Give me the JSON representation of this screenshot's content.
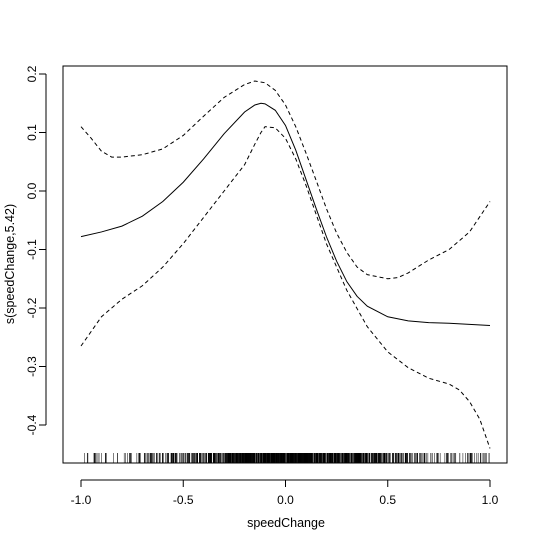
{
  "chart_data": {
    "type": "line",
    "title": "",
    "xlabel": "speedChange",
    "ylabel": "s(speedChange,5.42)",
    "xlim": [
      -1.05,
      1.05
    ],
    "ylim": [
      -0.465,
      0.21
    ],
    "x_ticks": [
      -1.0,
      -0.5,
      0.0,
      0.5,
      1.0
    ],
    "x_tick_labels": [
      "-1.0",
      "-0.5",
      "0.0",
      "0.5",
      "1.0"
    ],
    "y_ticks": [
      0.2,
      0.1,
      0.0,
      -0.1,
      -0.2,
      -0.3,
      -0.4
    ],
    "y_tick_labels": [
      "0.2",
      "0.1",
      "0.0",
      "-0.1",
      "-0.2",
      "-0.3",
      "-0.4"
    ],
    "grid": false,
    "legend": "none",
    "series": [
      {
        "style": "solid",
        "x": [
          -1.0,
          -0.9,
          -0.8,
          -0.7,
          -0.6,
          -0.5,
          -0.4,
          -0.3,
          -0.2,
          -0.15,
          -0.12,
          -0.1,
          -0.05,
          0.0,
          0.05,
          0.1,
          0.15,
          0.2,
          0.25,
          0.3,
          0.35,
          0.4,
          0.5,
          0.6,
          0.7,
          0.8,
          0.9,
          1.0
        ],
        "y": [
          -0.078,
          -0.07,
          -0.06,
          -0.043,
          -0.018,
          0.015,
          0.055,
          0.098,
          0.135,
          0.147,
          0.15,
          0.149,
          0.138,
          0.112,
          0.07,
          0.02,
          -0.03,
          -0.078,
          -0.12,
          -0.155,
          -0.18,
          -0.197,
          -0.215,
          -0.222,
          -0.225,
          -0.226,
          -0.228,
          -0.23
        ],
        "color": "#000000"
      },
      {
        "style": "dashed",
        "x": [
          -1.0,
          -0.95,
          -0.9,
          -0.85,
          -0.8,
          -0.7,
          -0.6,
          -0.5,
          -0.4,
          -0.3,
          -0.2,
          -0.15,
          -0.1,
          -0.05,
          0.0,
          0.05,
          0.1,
          0.15,
          0.2,
          0.25,
          0.3,
          0.35,
          0.4,
          0.5,
          0.55,
          0.6,
          0.7,
          0.8,
          0.9,
          1.0
        ],
        "y": [
          0.11,
          0.09,
          0.068,
          0.058,
          0.058,
          0.062,
          0.072,
          0.095,
          0.128,
          0.16,
          0.182,
          0.188,
          0.185,
          0.172,
          0.147,
          0.11,
          0.065,
          0.018,
          -0.03,
          -0.072,
          -0.105,
          -0.13,
          -0.143,
          -0.15,
          -0.148,
          -0.14,
          -0.118,
          -0.1,
          -0.07,
          -0.018
        ],
        "color": "#000000"
      },
      {
        "style": "dashed",
        "x": [
          -1.0,
          -0.95,
          -0.9,
          -0.8,
          -0.7,
          -0.6,
          -0.5,
          -0.4,
          -0.3,
          -0.2,
          -0.15,
          -0.12,
          -0.1,
          -0.05,
          0.0,
          0.05,
          0.1,
          0.15,
          0.2,
          0.3,
          0.4,
          0.5,
          0.6,
          0.7,
          0.8,
          0.85,
          0.9,
          0.95,
          1.0
        ],
        "y": [
          -0.265,
          -0.24,
          -0.215,
          -0.185,
          -0.162,
          -0.13,
          -0.09,
          -0.045,
          0.0,
          0.045,
          0.08,
          0.1,
          0.11,
          0.108,
          0.09,
          0.055,
          0.01,
          -0.04,
          -0.09,
          -0.17,
          -0.232,
          -0.275,
          -0.302,
          -0.32,
          -0.33,
          -0.34,
          -0.36,
          -0.39,
          -0.44
        ],
        "color": "#000000"
      }
    ],
    "rug": {
      "density": [
        [
          -1.0,
          -0.9,
          0.3
        ],
        [
          -0.9,
          -0.8,
          0.15
        ],
        [
          -0.8,
          -0.7,
          0.35
        ],
        [
          -0.7,
          -0.6,
          0.6
        ],
        [
          -0.6,
          -0.5,
          0.85
        ],
        [
          -0.5,
          -0.4,
          1.2
        ],
        [
          -0.4,
          -0.3,
          1.6
        ],
        [
          -0.3,
          -0.2,
          2.2
        ],
        [
          -0.2,
          -0.1,
          3.0
        ],
        [
          -0.1,
          0.0,
          3.4
        ],
        [
          0.0,
          0.1,
          3.4
        ],
        [
          0.1,
          0.2,
          3.0
        ],
        [
          0.2,
          0.3,
          2.6
        ],
        [
          0.3,
          0.4,
          2.0
        ],
        [
          0.4,
          0.5,
          1.5
        ],
        [
          0.5,
          0.6,
          1.0
        ],
        [
          0.6,
          0.7,
          0.6
        ],
        [
          0.7,
          0.8,
          0.4
        ],
        [
          0.8,
          0.9,
          0.35
        ],
        [
          0.9,
          1.0,
          0.5
        ]
      ]
    }
  }
}
